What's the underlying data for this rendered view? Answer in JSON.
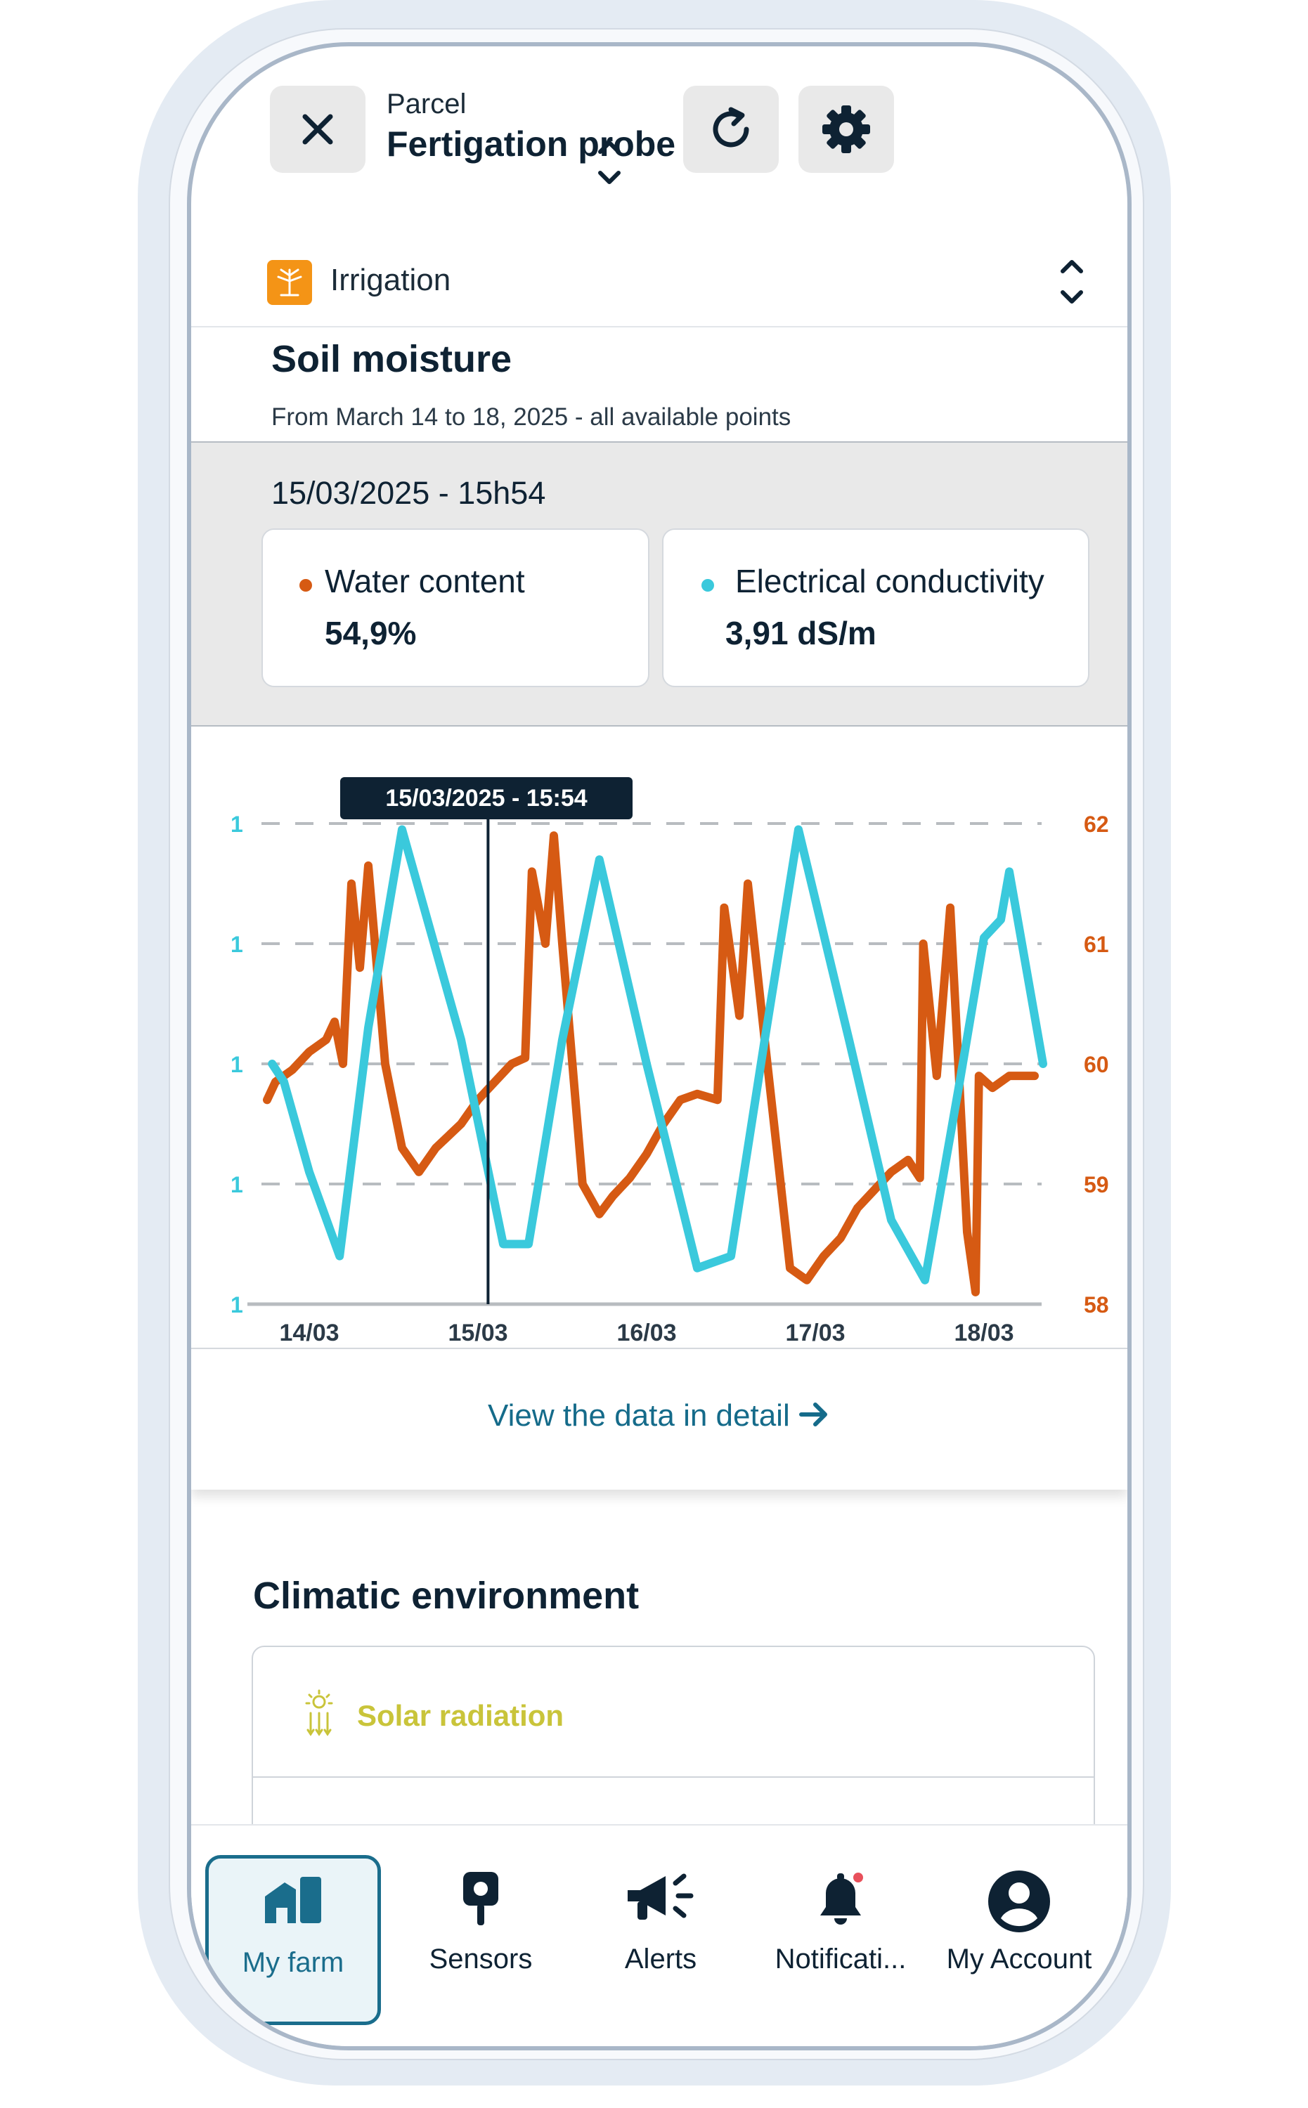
{
  "header": {
    "context_label": "Parcel",
    "title": "Fertigation probe",
    "close_icon": "close-icon",
    "selector_icon": "unfold-icon",
    "refresh_icon": "refresh-icon",
    "settings_icon": "gear-icon"
  },
  "category": {
    "label": "Irrigation",
    "icon": "irrigation-icon",
    "color": "#f49416"
  },
  "soil_moisture": {
    "title": "Soil moisture",
    "subtitle": "From March 14 to 18, 2025 - all available points"
  },
  "selection": {
    "datetime": "15/03/2025 - 15h54",
    "water_content": {
      "label": "Water content",
      "value": "54,9%",
      "color": "#d65a13"
    },
    "conductivity": {
      "label": "Electrical conductivity",
      "value": "3,91 dS/m",
      "color": "#3ac9dc"
    }
  },
  "chart_data": {
    "type": "line",
    "tooltip": "15/03/2025 - 15:54",
    "x_ticks": [
      "14/03",
      "15/03",
      "16/03",
      "17/03",
      "18/03"
    ],
    "left_axis_ticks": [
      "1",
      "1",
      "1",
      "1",
      "1"
    ],
    "right_axis_ticks": [
      "62",
      "61",
      "60",
      "59",
      "58"
    ],
    "right_ylim": [
      58,
      62
    ],
    "grid": true,
    "series": [
      {
        "color": "#d65a13",
        "axis": "right",
        "points": [
          [
            -0.25,
            59.7
          ],
          [
            -0.2,
            59.85
          ],
          [
            -0.1,
            59.95
          ],
          [
            0.0,
            60.1
          ],
          [
            0.1,
            60.2
          ],
          [
            0.15,
            60.35
          ],
          [
            0.2,
            60.0
          ],
          [
            0.25,
            61.5
          ],
          [
            0.3,
            60.8
          ],
          [
            0.35,
            61.65
          ],
          [
            0.45,
            60.0
          ],
          [
            0.55,
            59.3
          ],
          [
            0.65,
            59.1
          ],
          [
            0.75,
            59.3
          ],
          [
            0.9,
            59.5
          ],
          [
            1.0,
            59.7
          ],
          [
            1.1,
            59.85
          ],
          [
            1.2,
            60.0
          ],
          [
            1.28,
            60.05
          ],
          [
            1.32,
            61.6
          ],
          [
            1.4,
            61.0
          ],
          [
            1.45,
            61.9
          ],
          [
            1.5,
            61.0
          ],
          [
            1.62,
            59.0
          ],
          [
            1.72,
            58.75
          ],
          [
            1.8,
            58.9
          ],
          [
            1.9,
            59.05
          ],
          [
            2.0,
            59.25
          ],
          [
            2.1,
            59.5
          ],
          [
            2.2,
            59.7
          ],
          [
            2.3,
            59.75
          ],
          [
            2.42,
            59.7
          ],
          [
            2.46,
            61.3
          ],
          [
            2.55,
            60.4
          ],
          [
            2.6,
            61.5
          ],
          [
            2.7,
            60.2
          ],
          [
            2.85,
            58.3
          ],
          [
            2.95,
            58.2
          ],
          [
            3.05,
            58.4
          ],
          [
            3.15,
            58.55
          ],
          [
            3.25,
            58.8
          ],
          [
            3.35,
            58.95
          ],
          [
            3.45,
            59.1
          ],
          [
            3.55,
            59.2
          ],
          [
            3.62,
            59.05
          ],
          [
            3.64,
            61.0
          ],
          [
            3.72,
            59.9
          ],
          [
            3.8,
            61.3
          ],
          [
            3.9,
            58.6
          ],
          [
            3.95,
            58.1
          ],
          [
            3.97,
            59.9
          ],
          [
            4.05,
            59.8
          ],
          [
            4.15,
            59.9
          ],
          [
            4.3,
            59.9
          ]
        ]
      },
      {
        "color": "#3ac9dc",
        "axis": "right",
        "points": [
          [
            -0.22,
            60.0
          ],
          [
            -0.15,
            59.85
          ],
          [
            0.0,
            59.1
          ],
          [
            0.18,
            58.4
          ],
          [
            0.35,
            60.3
          ],
          [
            0.55,
            61.95
          ],
          [
            0.9,
            60.2
          ],
          [
            1.15,
            58.5
          ],
          [
            1.3,
            58.5
          ],
          [
            1.5,
            60.2
          ],
          [
            1.72,
            61.7
          ],
          [
            2.0,
            60.0
          ],
          [
            2.3,
            58.3
          ],
          [
            2.5,
            58.4
          ],
          [
            2.7,
            60.2
          ],
          [
            2.9,
            61.95
          ],
          [
            3.2,
            60.2
          ],
          [
            3.45,
            58.7
          ],
          [
            3.65,
            58.2
          ],
          [
            3.85,
            59.8
          ],
          [
            4.0,
            61.05
          ],
          [
            4.1,
            61.2
          ],
          [
            4.15,
            61.6
          ],
          [
            4.35,
            60.0
          ]
        ]
      }
    ]
  },
  "detail_link": "View the data in detail",
  "climatic": {
    "title": "Climatic environment",
    "solar_label": "Solar radiation",
    "solar_icon": "solar-radiation-icon",
    "solar_color": "#c9c43a"
  },
  "nav": [
    {
      "label": "My farm",
      "icon": "farm-icon",
      "active": true
    },
    {
      "label": "Sensors",
      "icon": "sensor-icon"
    },
    {
      "label": "Alerts",
      "icon": "megaphone-icon"
    },
    {
      "label": "Notificati...",
      "icon": "bell-icon"
    },
    {
      "label": "My Account",
      "icon": "account-icon"
    }
  ]
}
